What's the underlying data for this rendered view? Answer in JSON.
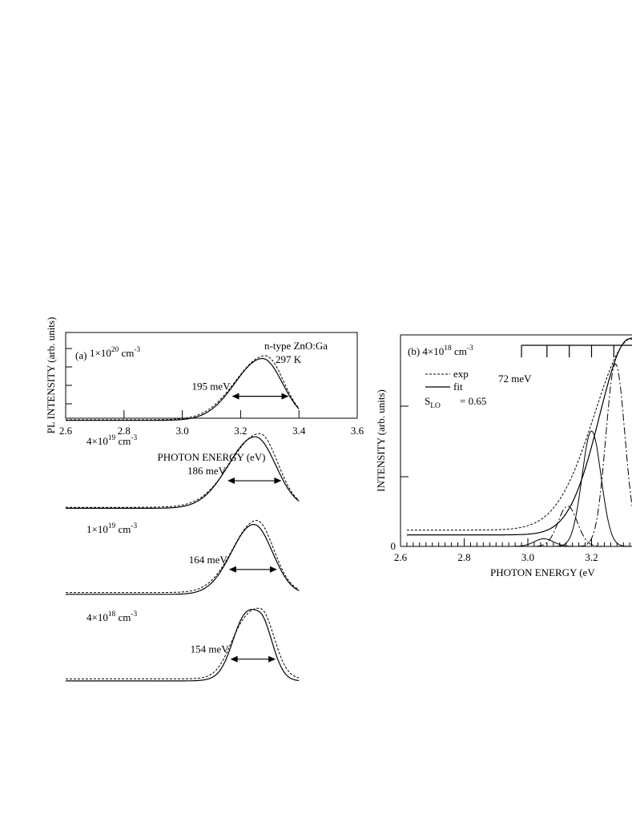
{
  "chart_data": [
    {
      "id": "panel-a",
      "type": "line",
      "xlabel": "PHOTON ENERGY (eV)",
      "ylabel": "PL INTENSITY (arb. units)",
      "xlim": [
        2.6,
        3.6
      ],
      "x_ticks": [
        2.6,
        2.8,
        3.0,
        3.2,
        3.4,
        3.6
      ],
      "x_tick_labels": [
        "2.6",
        "2.8",
        "3.0",
        "3.2",
        "3.4",
        "3.6"
      ],
      "annotations": {
        "sample": "n-type ZnO:Ga",
        "temperature": "297 K",
        "panel_label": "(a)"
      },
      "grid": false,
      "spectra": [
        {
          "concentration": "1×10",
          "exponent": "20",
          "unit": " cm",
          "unit_exp": "-3",
          "fwhm_label": "195 meV",
          "fwhm_range": [
            3.17,
            3.365
          ],
          "exp": {
            "peak": 3.285,
            "amplitude": 1.0,
            "sigma_low": 0.102,
            "sigma_high": 0.062,
            "background": 0.012
          },
          "fit": {
            "peak": 3.275,
            "amplitude": 0.965,
            "sigma_low": 0.094,
            "sigma_high": 0.068,
            "background": 0.004
          }
        },
        {
          "concentration": "4×10",
          "exponent": "19",
          "unit": " cm",
          "unit_exp": "-3",
          "fwhm_label": "186 meV",
          "fwhm_range": [
            3.155,
            3.34
          ],
          "exp": {
            "peak": 3.265,
            "amplitude": 1.0,
            "sigma_low": 0.1,
            "sigma_high": 0.062,
            "background": 0.02
          },
          "fit": {
            "peak": 3.25,
            "amplitude": 0.97,
            "sigma_low": 0.092,
            "sigma_high": 0.07,
            "background": 0.006
          }
        },
        {
          "concentration": "1×10",
          "exponent": "19",
          "unit": " cm",
          "unit_exp": "-3",
          "fwhm_label": "164 meV",
          "fwhm_range": [
            3.16,
            3.325
          ],
          "exp": {
            "peak": 3.255,
            "amplitude": 1.0,
            "sigma_low": 0.082,
            "sigma_high": 0.058,
            "background": 0.06
          },
          "fit": {
            "peak": 3.245,
            "amplitude": 0.97,
            "sigma_low": 0.076,
            "sigma_high": 0.064,
            "background": 0.035
          }
        },
        {
          "concentration": "4×10",
          "exponent": "18",
          "unit": " cm",
          "unit_exp": "-3",
          "fwhm_label": "154 meV",
          "fwhm_range": [
            3.165,
            3.32
          ],
          "exp": {
            "peak": 3.27,
            "amplitude": 1.0,
            "sigma_low": 0.07,
            "sigma_high": 0.045,
            "background": 0.09,
            "shoulder": {
              "center": 3.19,
              "amplitude": 0.22,
              "sigma": 0.04
            }
          },
          "fit": {
            "peak": 3.265,
            "amplitude": 0.96,
            "sigma_low": 0.066,
            "sigma_high": 0.042,
            "background": 0.06,
            "shoulder": {
              "center": 3.2,
              "amplitude": 0.3,
              "sigma": 0.035
            }
          }
        }
      ]
    },
    {
      "id": "panel-b",
      "type": "line",
      "xlabel": "PHOTON ENERGY (eV",
      "ylabel": "INTENSITY (arb. units)",
      "xlim": [
        2.6,
        3.35
      ],
      "x_ticks": [
        2.6,
        2.8,
        3.0,
        3.2
      ],
      "x_tick_labels": [
        "2.6",
        "2.8",
        "3.0",
        "3.2"
      ],
      "y_tick_labels": [
        "0"
      ],
      "annotations": {
        "panel_label": "(b) 4×10",
        "exponent": "18",
        "unit": " cm",
        "unit_exp": "-3",
        "phonon_energy": "72 meV",
        "s_label": "S",
        "s_sub": "LO",
        "s_value": "= 0.65"
      },
      "legend": [
        {
          "label": "exp",
          "style": "dashed"
        },
        {
          "label": "fit",
          "style": "solid"
        }
      ],
      "legend_placement": "top-left",
      "phonon_ladder": [
        2.98,
        3.06,
        3.13,
        3.2,
        3.27
      ],
      "components": [
        {
          "center": 3.05,
          "amplitude": 0.04,
          "sigma": 0.03
        },
        {
          "center": 3.125,
          "amplitude": 0.21,
          "sigma": 0.03
        },
        {
          "center": 3.2,
          "amplitude": 0.6,
          "sigma": 0.03
        },
        {
          "center": 3.275,
          "amplitude": 0.95,
          "sigma": 0.03
        }
      ],
      "exp": {
        "peak": 3.33,
        "amplitude": 1.0,
        "sigma_low": 0.12,
        "background": 0.085
      },
      "fit": {
        "peak": 3.32,
        "amplitude": 1.02,
        "sigma_low": 0.095,
        "background": 0.06
      },
      "grid": false
    }
  ]
}
